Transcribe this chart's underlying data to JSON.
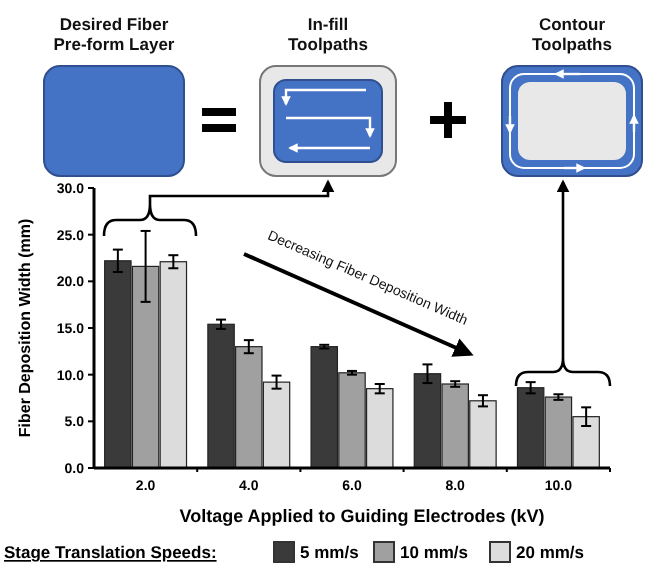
{
  "chart_data": {
    "type": "bar",
    "xlabel": "Voltage Applied to Guiding Electrodes (kV)",
    "ylabel": "Fiber Deposition Width (mm)",
    "legend_title": "Stage Translation Speeds:",
    "categories": [
      "2.0",
      "4.0",
      "6.0",
      "8.0",
      "10.0"
    ],
    "series": [
      {
        "name": "5 mm/s",
        "color": "#3a3a3a",
        "values": [
          22.2,
          15.4,
          13.0,
          10.1,
          8.6
        ],
        "errors": [
          1.2,
          0.5,
          0.2,
          1.0,
          0.6
        ]
      },
      {
        "name": "10 mm/s",
        "color": "#a0a0a0",
        "values": [
          21.6,
          13.0,
          10.2,
          9.0,
          7.6
        ],
        "errors": [
          3.8,
          0.7,
          0.2,
          0.3,
          0.3
        ]
      },
      {
        "name": "20 mm/s",
        "color": "#dcdcdc",
        "values": [
          22.1,
          9.2,
          8.5,
          7.2,
          5.5
        ],
        "errors": [
          0.7,
          0.7,
          0.5,
          0.6,
          1.0
        ]
      }
    ],
    "ylim": [
      0,
      30
    ],
    "yticks": [
      {
        "value": 0,
        "label": "0.0"
      },
      {
        "value": 5,
        "label": "5.0"
      },
      {
        "value": 10,
        "label": "10.0"
      },
      {
        "value": 15,
        "label": "15.0"
      },
      {
        "value": 20,
        "label": "20.0"
      },
      {
        "value": 25,
        "label": "25.0"
      },
      {
        "value": 30,
        "label": "30.0"
      }
    ],
    "legend": "bottom",
    "annotations": [
      "Desired Fiber\nPre-form Layer",
      "In-fill\nToolpaths",
      "Contour\nToolpaths",
      "Decreasing Fiber Deposition Width"
    ]
  }
}
